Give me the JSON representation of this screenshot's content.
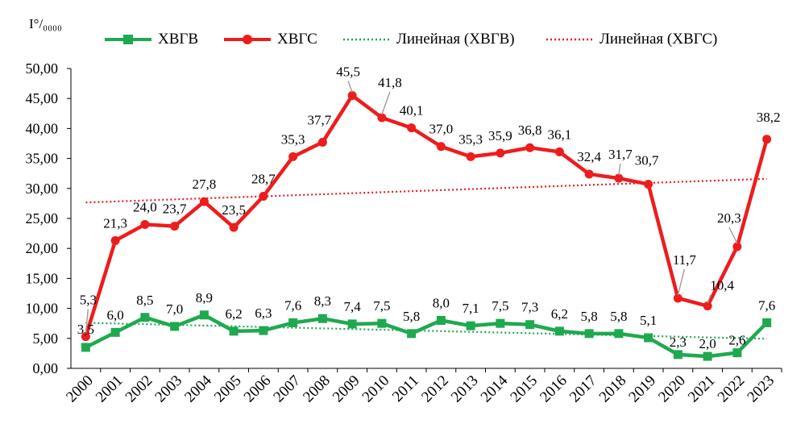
{
  "chart_data": {
    "type": "line",
    "unit_label": "I°/₀₀₀₀",
    "x": [
      "2000",
      "2001",
      "2002",
      "2003",
      "2004",
      "2005",
      "2006",
      "2007",
      "2008",
      "2009",
      "2010",
      "2011",
      "2012",
      "2013",
      "2014",
      "2015",
      "2016",
      "2017",
      "2018",
      "2019",
      "2020",
      "2021",
      "2022",
      "2023"
    ],
    "ylim": [
      0,
      50
    ],
    "yticks": [
      "0,00",
      "5,00",
      "10,00",
      "15,00",
      "20,00",
      "25,00",
      "30,00",
      "35,00",
      "40,00",
      "45,00",
      "50,00"
    ],
    "grid": false,
    "legend_position": "top",
    "series": [
      {
        "name": "ХВГВ",
        "color": "#1fa94f",
        "marker": "square",
        "values": [
          3.5,
          6.0,
          8.5,
          7.0,
          8.9,
          6.2,
          6.3,
          7.6,
          8.3,
          7.4,
          7.5,
          5.8,
          8.0,
          7.1,
          7.5,
          7.3,
          6.2,
          5.8,
          5.8,
          5.1,
          2.3,
          2.0,
          2.6,
          7.6
        ],
        "labels": [
          "3,5",
          "6,0",
          "8,5",
          "7,0",
          "8,9",
          "6,2",
          "6,3",
          "7,6",
          "8,3",
          "7,4",
          "7,5",
          "5,8",
          "8,0",
          "7,1",
          "7,5",
          "7,3",
          "6,2",
          "5,8",
          "5,8",
          "5,1",
          "2,3",
          "2,0",
          "2,6",
          "7,6"
        ]
      },
      {
        "name": "ХВГС",
        "color": "#ee1c1c",
        "marker": "circle",
        "values": [
          5.3,
          21.3,
          24.0,
          23.7,
          27.8,
          23.5,
          28.7,
          35.3,
          37.7,
          45.5,
          41.8,
          40.1,
          37.0,
          35.3,
          35.9,
          36.8,
          36.1,
          32.4,
          31.7,
          30.7,
          11.7,
          10.4,
          20.3,
          38.2
        ],
        "labels": [
          "5,3",
          "21,3",
          "24,0",
          "23,7",
          "27,8",
          "23,5",
          "28,7",
          "35,3",
          "37,7",
          "45,5",
          "41,8",
          "40,1",
          "37,0",
          "35,3",
          "35,9",
          "36,8",
          "36,1",
          "32,4",
          "31,7",
          "30,7",
          "11,7",
          "10,4",
          "20,3",
          "38,2"
        ]
      }
    ],
    "trendlines": [
      {
        "name": "Линейная (ХВГВ)",
        "color": "#1fa94f",
        "style": "dotted",
        "linear_fit_of": "ХВГВ"
      },
      {
        "name": "Линейная (ХВГС)",
        "color": "#ee1c1c",
        "style": "dotted",
        "linear_fit_of": "ХВГС"
      }
    ]
  }
}
